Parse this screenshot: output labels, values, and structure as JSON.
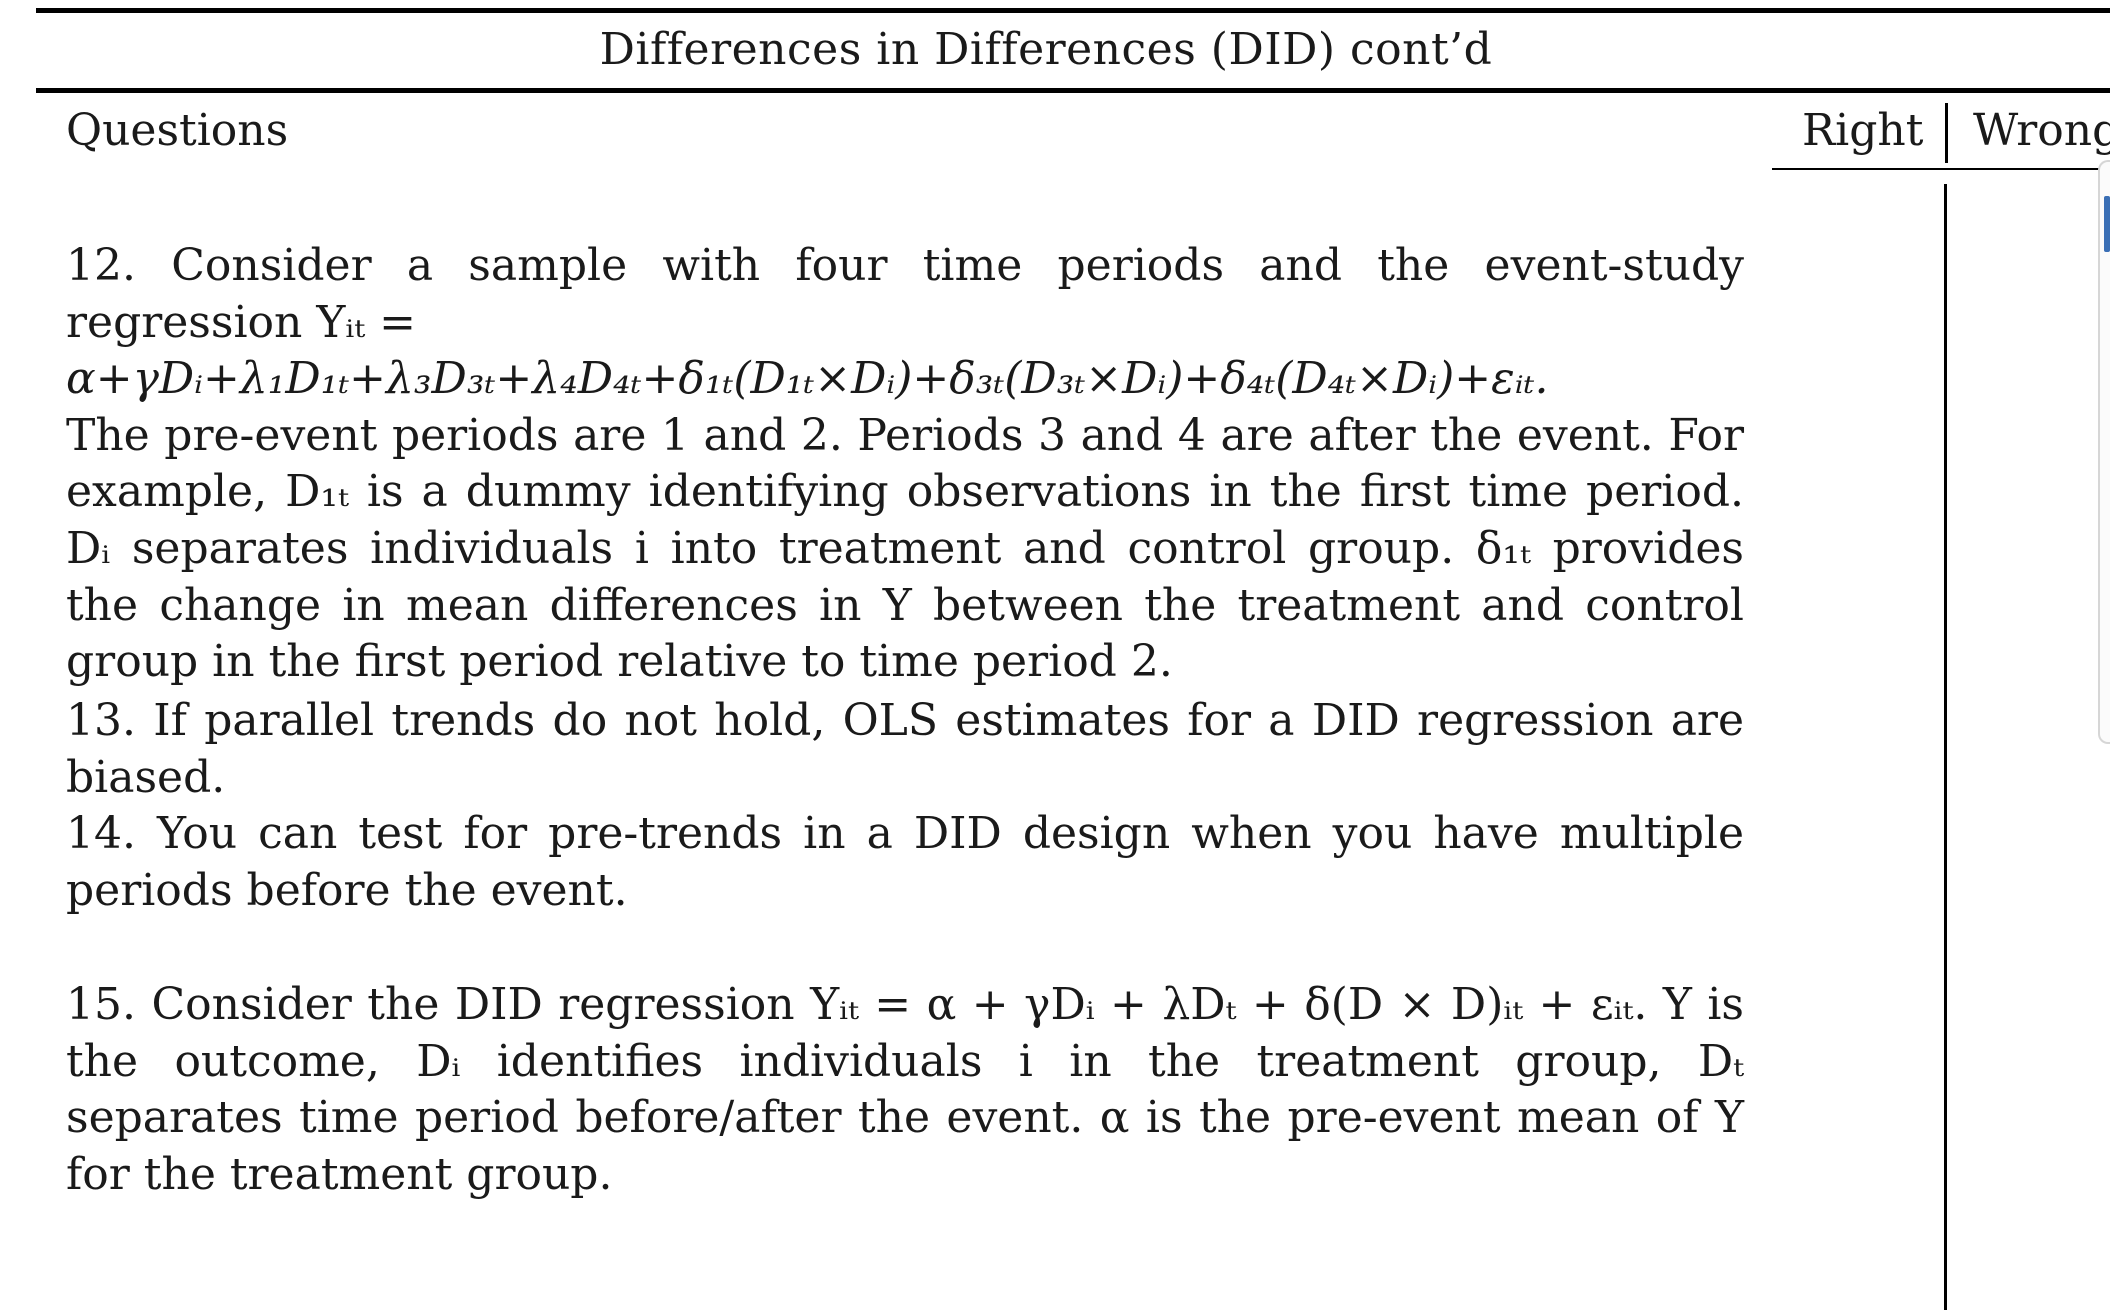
{
  "title": "Differences in Differences (DID) cont’d",
  "questions_heading": "Questions",
  "answer_columns": {
    "right": "Right",
    "wrong": "Wrong"
  },
  "questions": [
    {
      "number": "12.",
      "text": "12. Consider a sample with four time periods and the event-study regression Yᵢₜ =",
      "equation": "α+γDᵢ+λ₁D₁ₜ+λ₃D₃ₜ+λ₄D₄ₜ+δ₁ₜ(D₁ₜ×Dᵢ)+δ₃ₜ(D₃ₜ×Dᵢ)+δ₄ₜ(D₄ₜ×Dᵢ)+εᵢₜ.",
      "text_cont": "The pre-event periods are 1 and 2. Periods 3 and 4 are after the event. For example, D₁ₜ is a dummy identifying observations in the first time period. Dᵢ separates individuals i into treatment and control group. δ₁ₜ provides the change in mean differences in Y between the treatment and control group in the first period relative to time period 2."
    },
    {
      "number": "13.",
      "text": "13. If parallel trends do not hold, OLS estimates for a DID regression are biased."
    },
    {
      "number": "14.",
      "text": "14. You can test for pre-trends in a DID design when you have multiple periods before the event."
    },
    {
      "number": "15.",
      "text": "15. Consider the DID regression Yᵢₜ = α + γDᵢ + λDₜ + δ(D × D)ᵢₜ + εᵢₜ. Y is the outcome, Dᵢ identifies individuals i in the treatment group, Dₜ separates time period before/after the event. α is the pre-event mean of Y for the treatment group."
    }
  ]
}
